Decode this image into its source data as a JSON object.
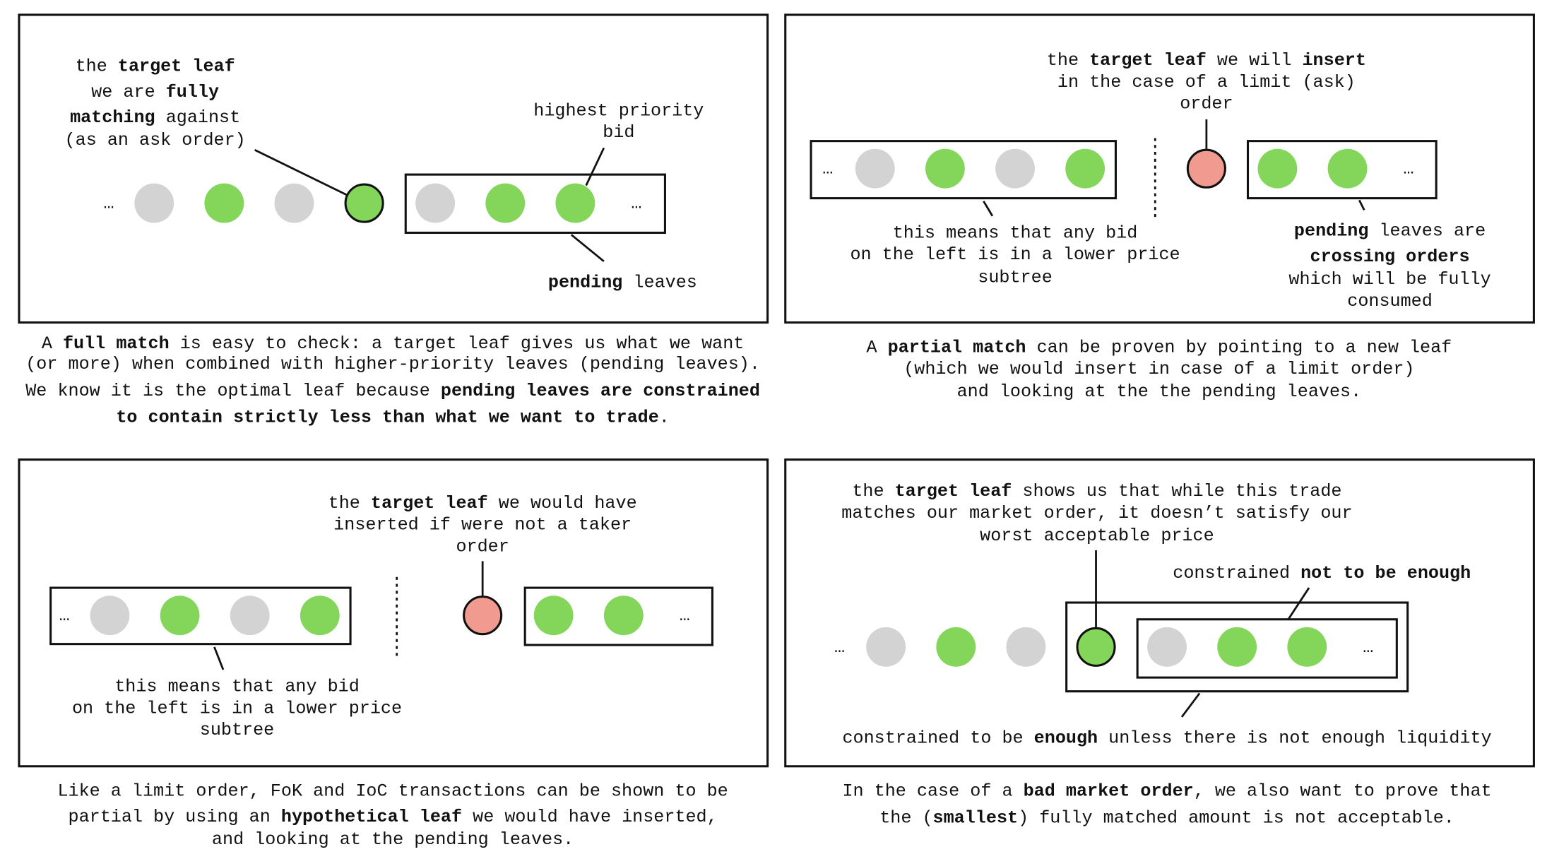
{
  "colors": {
    "green": "#84d65a",
    "gray": "#d3d3d3",
    "red": "#f19a8f",
    "ink": "#111111"
  },
  "ellipsis": "…",
  "panels": [
    {
      "id": "full-match",
      "labels": {
        "target": [
          [
            {
              "t": "the "
            },
            {
              "t": "target leaf",
              "b": true
            }
          ],
          [
            {
              "t": "we are "
            },
            {
              "t": "fully",
              "b": true
            }
          ],
          [
            {
              "t": "matching",
              "b": true
            },
            {
              "t": " against"
            }
          ],
          [
            {
              "t": "(as an ask order)"
            }
          ]
        ],
        "priority": [
          [
            {
              "t": "highest priority"
            }
          ],
          [
            {
              "t": "bid"
            }
          ]
        ],
        "pending": [
          [
            {
              "t": "pending",
              "b": true
            },
            {
              "t": " leaves"
            }
          ]
        ]
      },
      "caption": [
        [
          {
            "t": "A "
          },
          {
            "t": "full match",
            "b": true
          },
          {
            "t": " is easy to check: a target leaf gives us what we want"
          }
        ],
        [
          {
            "t": "(or more) when combined with higher-priority leaves (pending leaves)."
          }
        ],
        [
          {
            "t": "We know it is the optimal leaf because "
          },
          {
            "t": "pending leaves are constrained",
            "b": true
          }
        ],
        [
          {
            "t": "to contain strictly less than what we want to trade",
            "b": true
          },
          {
            "t": "."
          }
        ]
      ]
    },
    {
      "id": "partial-match",
      "labels": {
        "target": [
          [
            {
              "t": "the "
            },
            {
              "t": "target leaf",
              "b": true
            },
            {
              "t": " we will "
            },
            {
              "t": "insert",
              "b": true
            }
          ],
          [
            {
              "t": "in the case of a limit (ask)"
            }
          ],
          [
            {
              "t": "order"
            }
          ]
        ],
        "left": [
          [
            {
              "t": "this means that any bid"
            }
          ],
          [
            {
              "t": "on the left is in a lower price"
            }
          ],
          [
            {
              "t": "subtree"
            }
          ]
        ],
        "pending": [
          [
            {
              "t": "pending",
              "b": true
            },
            {
              "t": " leaves are"
            }
          ],
          [
            {
              "t": "crossing orders",
              "b": true
            }
          ],
          [
            {
              "t": "which will be fully"
            }
          ],
          [
            {
              "t": "consumed"
            }
          ]
        ]
      },
      "caption": [
        [
          {
            "t": "A "
          },
          {
            "t": "partial match",
            "b": true
          },
          {
            "t": " can be proven by pointing to a new leaf"
          }
        ],
        [
          {
            "t": "(which we would insert in case of a limit order)"
          }
        ],
        [
          {
            "t": "and looking at the the pending leaves."
          }
        ]
      ]
    },
    {
      "id": "fok-ioc",
      "labels": {
        "target": [
          [
            {
              "t": "the "
            },
            {
              "t": "target leaf",
              "b": true
            },
            {
              "t": " we would have"
            }
          ],
          [
            {
              "t": "inserted if were not a taker"
            }
          ],
          [
            {
              "t": "order"
            }
          ]
        ],
        "left": [
          [
            {
              "t": "this means that any bid"
            }
          ],
          [
            {
              "t": "on the left is in a lower price"
            }
          ],
          [
            {
              "t": "subtree"
            }
          ]
        ]
      },
      "caption": [
        [
          {
            "t": "Like a limit order, FoK and IoC transactions can be shown to be"
          }
        ],
        [
          {
            "t": "partial by using an "
          },
          {
            "t": "hypothetical leaf",
            "b": true
          },
          {
            "t": " we would have inserted,"
          }
        ],
        [
          {
            "t": "and looking at the pending leaves."
          }
        ]
      ]
    },
    {
      "id": "bad-market-order",
      "labels": {
        "target": [
          [
            {
              "t": "the "
            },
            {
              "t": "target leaf",
              "b": true
            },
            {
              "t": " shows us that while this trade"
            }
          ],
          [
            {
              "t": "matches our market order, it doesn’t satisfy our"
            }
          ],
          [
            {
              "t": "worst acceptable price"
            }
          ]
        ],
        "inner": [
          [
            {
              "t": "constrained "
            },
            {
              "t": "not to be enough",
              "b": true
            }
          ]
        ],
        "outer": [
          [
            {
              "t": "constrained to be "
            },
            {
              "t": "enough",
              "b": true
            },
            {
              "t": " unless there is not enough liquidity"
            }
          ]
        ]
      },
      "caption": [
        [
          {
            "t": "In the case of a "
          },
          {
            "t": "bad market order",
            "b": true
          },
          {
            "t": ", we also want to prove that"
          }
        ],
        [
          {
            "t": "the ("
          },
          {
            "t": "smallest",
            "b": true
          },
          {
            "t": ") fully matched amount is not acceptable."
          }
        ]
      ]
    }
  ]
}
